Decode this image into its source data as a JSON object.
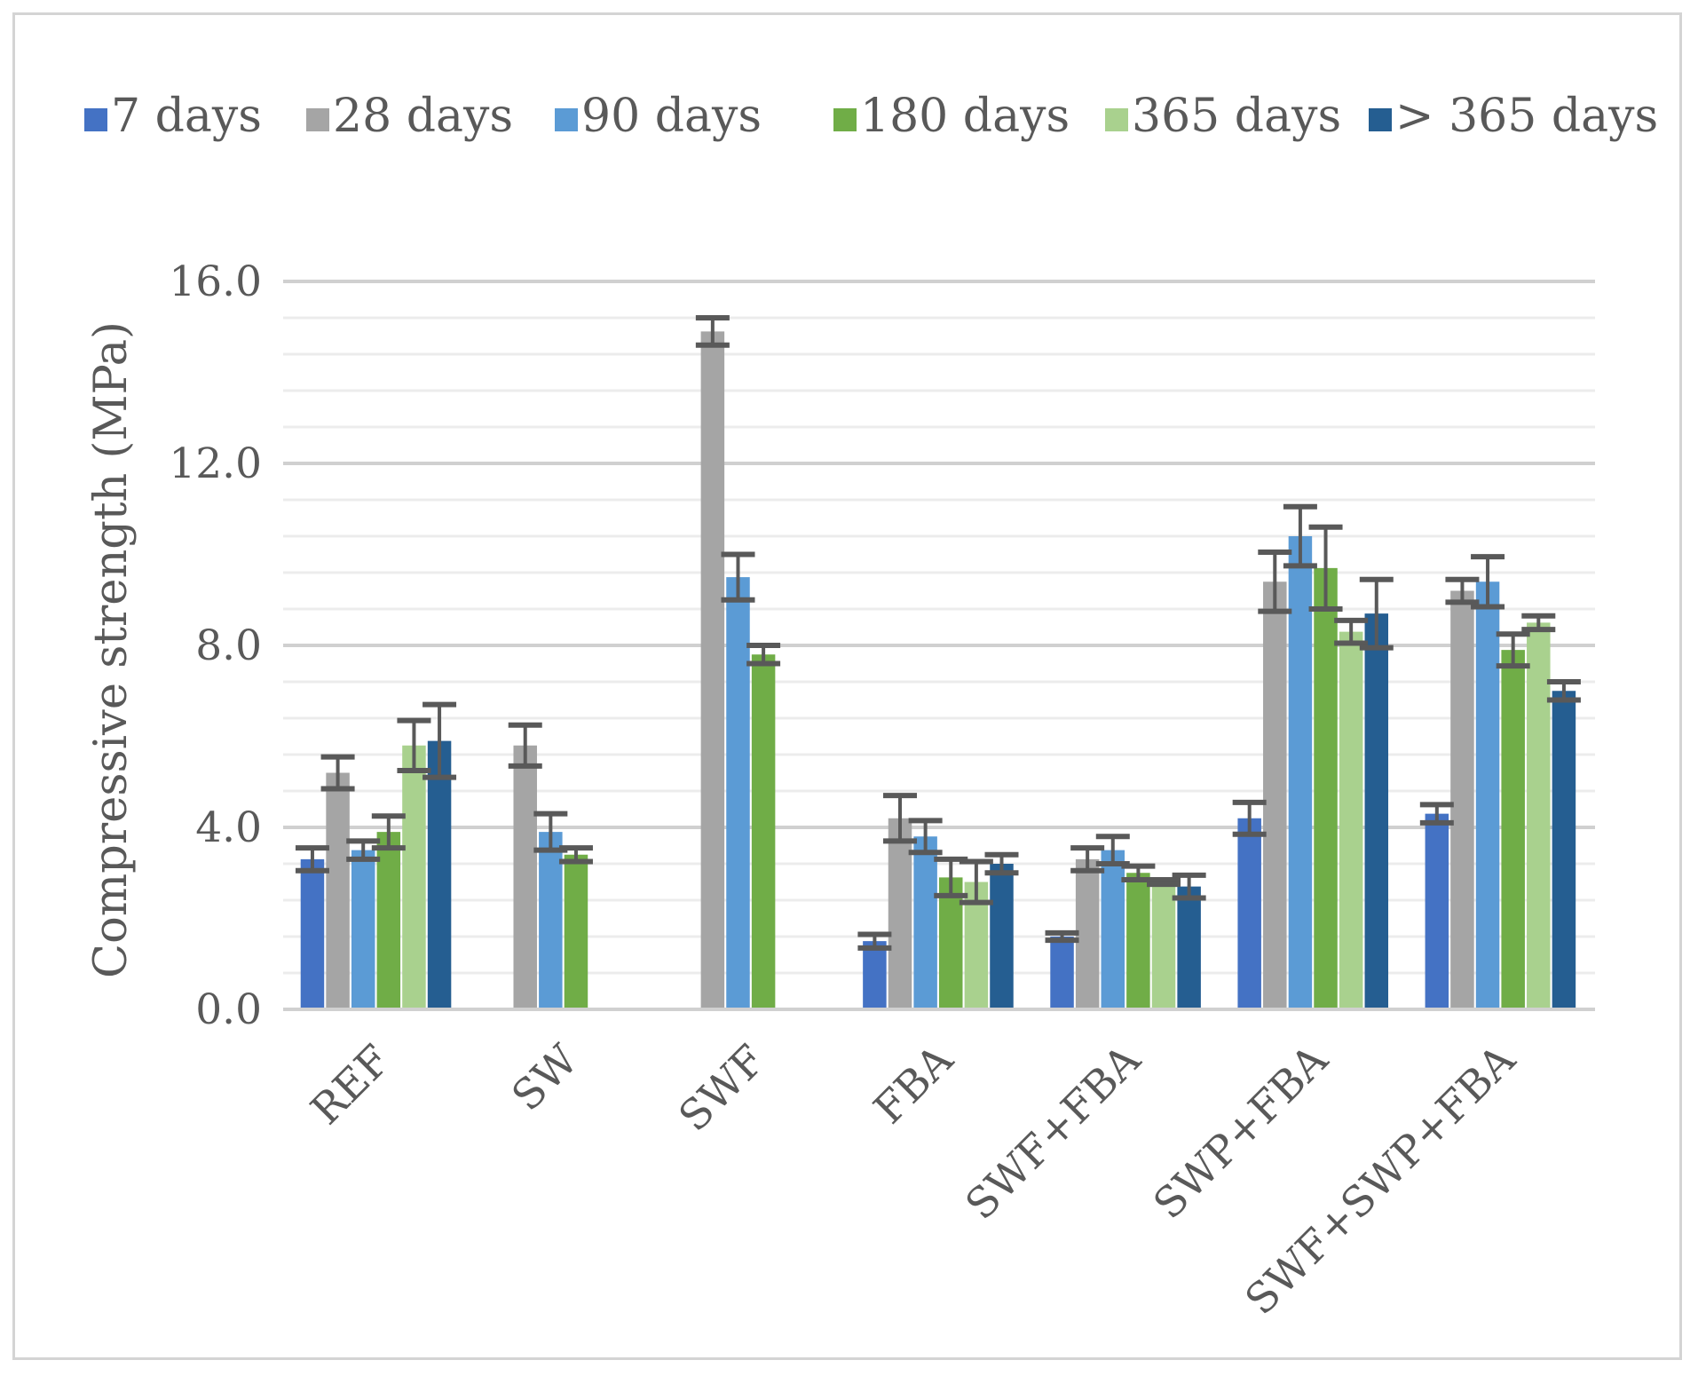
{
  "chart_data": {
    "type": "bar",
    "title": "",
    "xlabel": "",
    "ylabel": "Compressive strength (MPa)",
    "ylim": [
      0,
      16
    ],
    "yticks": [
      0,
      4,
      8,
      12,
      16
    ],
    "ytick_labels": [
      "0.0",
      "4.0",
      "8.0",
      "12.0",
      "16.0"
    ],
    "minor_grid_step": 0.8,
    "legend_position": "top",
    "categories": [
      "REF",
      "SW",
      "SWF",
      "FBA",
      "SWF+FBA",
      "SWP+FBA",
      "SWF+SWP+FBA"
    ],
    "series": [
      {
        "name": "7 days",
        "color": "#4472c4",
        "values": [
          3.3,
          null,
          null,
          1.5,
          1.6,
          4.2,
          4.3
        ],
        "errors": [
          0.25,
          null,
          null,
          0.15,
          0.08,
          0.35,
          0.2
        ]
      },
      {
        "name": "28 days",
        "color": "#a5a5a5",
        "values": [
          5.2,
          5.8,
          14.9,
          4.2,
          3.3,
          9.4,
          9.2
        ],
        "errors": [
          0.35,
          0.45,
          0.3,
          0.5,
          0.25,
          0.65,
          0.25
        ]
      },
      {
        "name": "90 days",
        "color": "#5b9bd5",
        "values": [
          3.5,
          3.9,
          9.5,
          3.8,
          3.5,
          10.4,
          9.4
        ],
        "errors": [
          0.2,
          0.4,
          0.5,
          0.35,
          0.3,
          0.65,
          0.55
        ]
      },
      {
        "name": "180 days",
        "color": "#70ad47",
        "values": [
          3.9,
          3.4,
          7.8,
          2.9,
          3.0,
          9.7,
          7.9
        ],
        "errors": [
          0.35,
          0.15,
          0.2,
          0.4,
          0.15,
          0.9,
          0.35
        ]
      },
      {
        "name": "365 days",
        "color": "#a9d18e",
        "values": [
          5.8,
          null,
          null,
          2.8,
          2.8,
          8.3,
          8.5
        ],
        "errors": [
          0.55,
          null,
          null,
          0.45,
          0.05,
          0.25,
          0.15
        ]
      },
      {
        "name": "> 365 days",
        "color": "#255e91",
        "values": [
          5.9,
          null,
          null,
          3.2,
          2.7,
          8.7,
          7.0
        ],
        "errors": [
          0.8,
          null,
          null,
          0.2,
          0.25,
          0.75,
          0.2
        ]
      }
    ],
    "error_bar_color": "#595959"
  }
}
